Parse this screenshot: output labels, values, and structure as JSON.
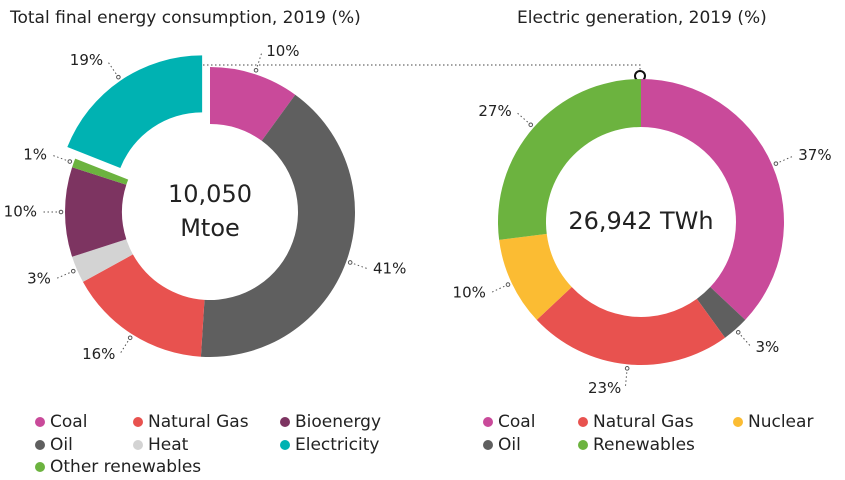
{
  "chart_data": [
    {
      "type": "pie",
      "title": "Total final energy consumption, 2019 (%)",
      "center_label": [
        "10,050",
        "Mtoe"
      ],
      "categories": [
        "Coal",
        "Oil",
        "Natural Gas",
        "Heat",
        "Bioenergy",
        "Other renewables",
        "Electricity"
      ],
      "values": [
        10,
        41,
        16,
        3,
        10,
        1,
        19
      ],
      "value_labels": [
        "10%",
        "41%",
        "16%",
        "3%",
        "10%",
        "1%",
        "19%"
      ],
      "colors": [
        "#c94a9a",
        "#5f5f5f",
        "#e8524f",
        "#d3d3d3",
        "#7d3461",
        "#6cb33f",
        "#00b2b2"
      ],
      "exploded": "Electricity"
    },
    {
      "type": "pie",
      "title": "Electric generation, 2019 (%)",
      "center_label": [
        "26,942 TWh"
      ],
      "categories": [
        "Coal",
        "Oil",
        "Natural Gas",
        "Nuclear",
        "Renewables"
      ],
      "values": [
        37,
        3,
        23,
        10,
        27
      ],
      "value_labels": [
        "37%",
        "3%",
        "23%",
        "10%",
        "27%"
      ],
      "colors": [
        "#c94a9a",
        "#5f5f5f",
        "#e8524f",
        "#fbbc33",
        "#6cb33f"
      ]
    }
  ]
}
